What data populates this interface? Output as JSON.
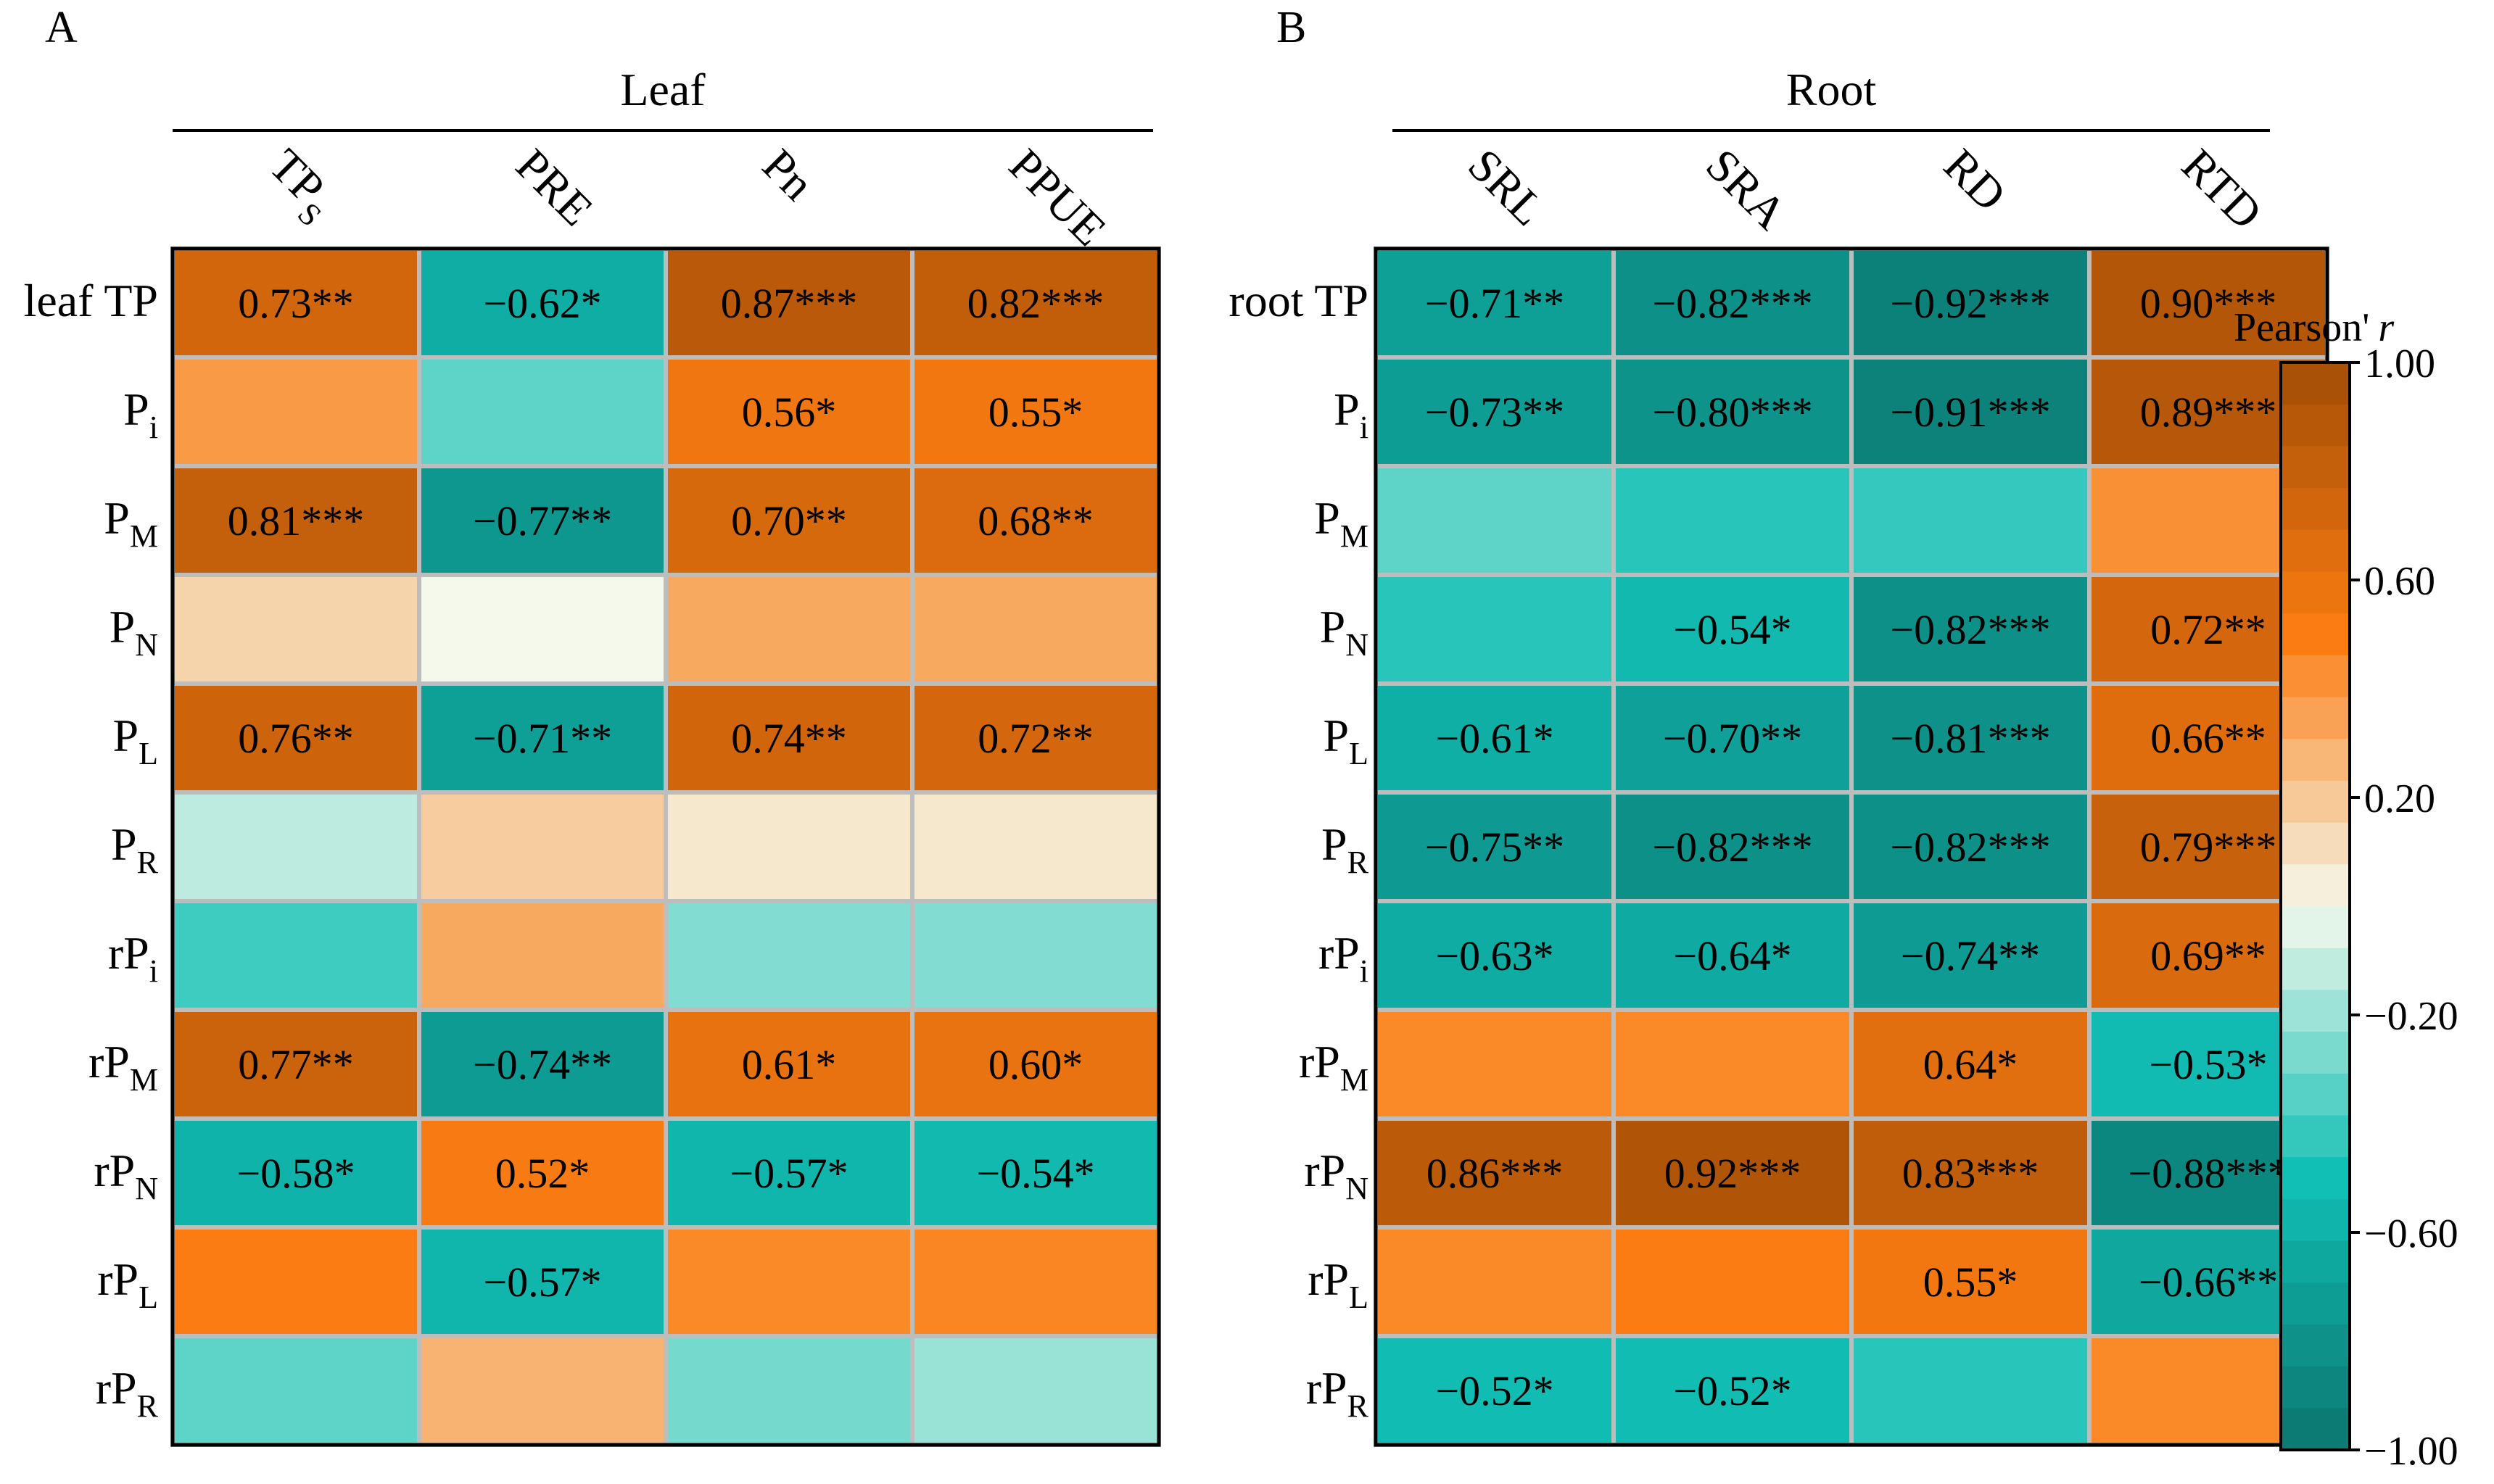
{
  "colors": {
    "neg_end": "#0B756E",
    "neg_mid": "#11BFB5",
    "neutral": "#F4F9EC",
    "pos_mid": "#FB7C12",
    "pos_end": "#A24D06",
    "grid": "#BDBDBD"
  },
  "chart_data": [
    {
      "type": "heatmap",
      "panel_label": "A",
      "group_label": "Leaf",
      "columns": [
        {
          "main": "TP",
          "sub": "S"
        },
        {
          "main": "PRE",
          "sub": ""
        },
        {
          "main": "Pn",
          "sub": ""
        },
        {
          "main": "PPUE",
          "sub": ""
        }
      ],
      "rows": [
        {
          "main": "leaf TP",
          "sub": ""
        },
        {
          "main": "P",
          "sub": "i"
        },
        {
          "main": "P",
          "sub": "M"
        },
        {
          "main": "P",
          "sub": "N"
        },
        {
          "main": "P",
          "sub": "L"
        },
        {
          "main": "P",
          "sub": "R"
        },
        {
          "main": "rP",
          "sub": "i"
        },
        {
          "main": "rP",
          "sub": "M"
        },
        {
          "main": "rP",
          "sub": "N"
        },
        {
          "main": "rP",
          "sub": "L"
        },
        {
          "main": "rP",
          "sub": "R"
        }
      ],
      "values": [
        [
          0.73,
          -0.62,
          0.87,
          0.82
        ],
        [
          0.38,
          -0.33,
          0.56,
          0.55
        ],
        [
          0.81,
          -0.77,
          0.7,
          0.68
        ],
        [
          0.15,
          0.0,
          0.32,
          0.32
        ],
        [
          0.76,
          -0.71,
          0.74,
          0.72
        ],
        [
          -0.12,
          0.18,
          0.07,
          0.07
        ],
        [
          -0.4,
          0.32,
          -0.25,
          -0.25
        ],
        [
          0.77,
          -0.74,
          0.61,
          0.6
        ],
        [
          -0.58,
          0.52,
          -0.57,
          -0.54
        ],
        [
          0.5,
          -0.57,
          0.45,
          0.46
        ],
        [
          -0.33,
          0.28,
          -0.28,
          -0.2
        ]
      ],
      "labels": [
        [
          "0.73**",
          "−0.62*",
          "0.87***",
          "0.82***"
        ],
        [
          "",
          "",
          "0.56*",
          "0.55*"
        ],
        [
          "0.81***",
          "−0.77**",
          "0.70**",
          "0.68**"
        ],
        [
          "",
          "",
          "",
          ""
        ],
        [
          "0.76**",
          "−0.71**",
          "0.74**",
          "0.72**"
        ],
        [
          "",
          "",
          "",
          ""
        ],
        [
          "",
          "",
          "",
          ""
        ],
        [
          "0.77**",
          "−0.74**",
          "0.61*",
          "0.60*"
        ],
        [
          "−0.58*",
          "0.52*",
          "−0.57*",
          "−0.54*"
        ],
        [
          "",
          "−0.57*",
          "",
          ""
        ],
        [
          "",
          "",
          "",
          ""
        ]
      ]
    },
    {
      "type": "heatmap",
      "panel_label": "B",
      "group_label": "Root",
      "columns": [
        {
          "main": "SRL",
          "sub": ""
        },
        {
          "main": "SRA",
          "sub": ""
        },
        {
          "main": "RD",
          "sub": ""
        },
        {
          "main": "RTD",
          "sub": ""
        }
      ],
      "rows": [
        {
          "main": "root TP",
          "sub": ""
        },
        {
          "main": "P",
          "sub": "i"
        },
        {
          "main": "P",
          "sub": "M"
        },
        {
          "main": "P",
          "sub": "N"
        },
        {
          "main": "P",
          "sub": "L"
        },
        {
          "main": "P",
          "sub": "R"
        },
        {
          "main": "rP",
          "sub": "i"
        },
        {
          "main": "rP",
          "sub": "M"
        },
        {
          "main": "rP",
          "sub": "N"
        },
        {
          "main": "rP",
          "sub": "L"
        },
        {
          "main": "rP",
          "sub": "R"
        }
      ],
      "values": [
        [
          -0.71,
          -0.82,
          -0.92,
          0.9
        ],
        [
          -0.73,
          -0.8,
          -0.91,
          0.89
        ],
        [
          -0.33,
          -0.45,
          -0.42,
          0.42
        ],
        [
          -0.45,
          -0.54,
          -0.82,
          0.72
        ],
        [
          -0.61,
          -0.7,
          -0.81,
          0.66
        ],
        [
          -0.75,
          -0.82,
          -0.82,
          0.79
        ],
        [
          -0.63,
          -0.64,
          -0.74,
          0.69
        ],
        [
          0.45,
          0.45,
          0.64,
          -0.53
        ],
        [
          0.86,
          0.92,
          0.83,
          -0.88
        ],
        [
          0.45,
          0.5,
          0.55,
          -0.66
        ],
        [
          -0.52,
          -0.52,
          -0.45,
          0.45
        ]
      ],
      "labels": [
        [
          "−0.71**",
          "−0.82***",
          "−0.92***",
          "0.90***"
        ],
        [
          "−0.73**",
          "−0.80***",
          "−0.91***",
          "0.89***"
        ],
        [
          "",
          "",
          "",
          ""
        ],
        [
          "",
          "−0.54*",
          "−0.82***",
          "0.72**"
        ],
        [
          "−0.61*",
          "−0.70**",
          "−0.81***",
          "0.66**"
        ],
        [
          "−0.75**",
          "−0.82***",
          "−0.82***",
          "0.79***"
        ],
        [
          "−0.63*",
          "−0.64*",
          "−0.74**",
          "0.69**"
        ],
        [
          "",
          "",
          "0.64*",
          "−0.53*"
        ],
        [
          "0.86***",
          "0.92***",
          "0.83***",
          "−0.88***"
        ],
        [
          "",
          "",
          "0.55*",
          "−0.66**"
        ],
        [
          "−0.52*",
          "−0.52*",
          "",
          ""
        ]
      ]
    }
  ],
  "colorbar": {
    "title_text": "Pearson'",
    "title_var": "r",
    "range": [
      -1.0,
      1.0
    ],
    "steps": 26,
    "ticks": [
      {
        "value": 1.0,
        "label": "1.00"
      },
      {
        "value": 0.6,
        "label": "0.60"
      },
      {
        "value": 0.2,
        "label": "0.20"
      },
      {
        "value": -0.2,
        "label": "−0.20"
      },
      {
        "value": -0.6,
        "label": "−0.60"
      },
      {
        "value": -1.0,
        "label": "−1.00"
      }
    ]
  }
}
